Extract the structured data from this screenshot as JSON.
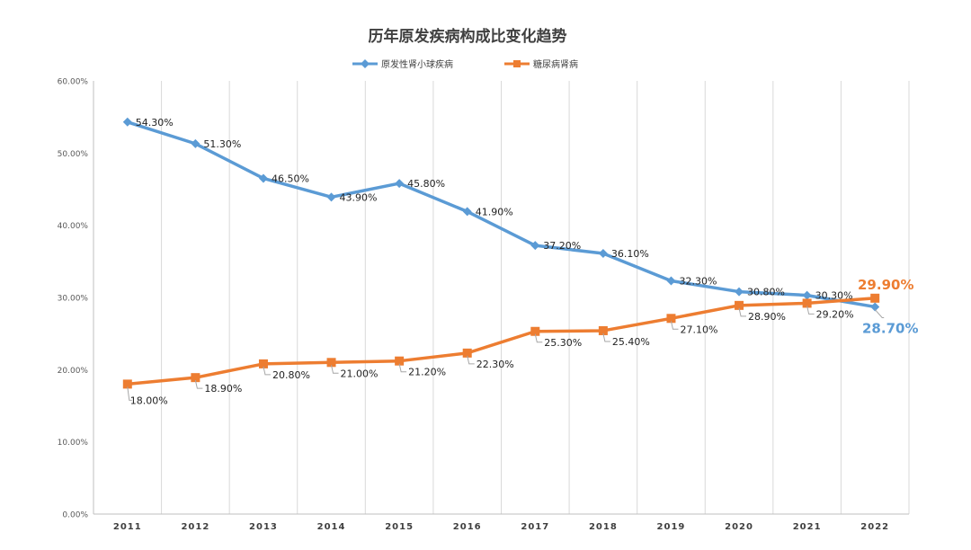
{
  "chart_data": {
    "type": "line",
    "title": "历年原发疾病构成比变化趋势",
    "categories": [
      "2011",
      "2012",
      "2013",
      "2014",
      "2015",
      "2016",
      "2017",
      "2018",
      "2019",
      "2020",
      "2021",
      "2022"
    ],
    "y_tick_labels": [
      "0.00%",
      "10.00%",
      "20.00%",
      "30.00%",
      "40.00%",
      "50.00%",
      "60.00%"
    ],
    "ylim": [
      0,
      60
    ],
    "grid": "vertical",
    "legend_position": "top-center",
    "series": [
      {
        "name": "原发性肾小球疾病",
        "color": "#5B9BD5",
        "marker": "diamond",
        "values": [
          54.3,
          51.3,
          46.5,
          43.9,
          45.8,
          41.9,
          37.2,
          36.1,
          32.3,
          30.8,
          30.3,
          28.7
        ],
        "labels": [
          "54.30%",
          "51.30%",
          "46.50%",
          "43.90%",
          "45.80%",
          "41.90%",
          "37.20%",
          "36.10%",
          "32.30%",
          "30.80%",
          "30.30%",
          "28.70%"
        ]
      },
      {
        "name": "糖尿病肾病",
        "color": "#ED7D31",
        "marker": "square",
        "values": [
          18.0,
          18.9,
          20.8,
          21.0,
          21.2,
          22.3,
          25.3,
          25.4,
          27.1,
          28.9,
          29.2,
          29.9
        ],
        "labels": [
          "18.00%",
          "18.90%",
          "20.80%",
          "21.00%",
          "21.20%",
          "22.30%",
          "25.30%",
          "25.40%",
          "27.10%",
          "28.90%",
          "29.20%",
          "29.90%"
        ]
      }
    ]
  }
}
